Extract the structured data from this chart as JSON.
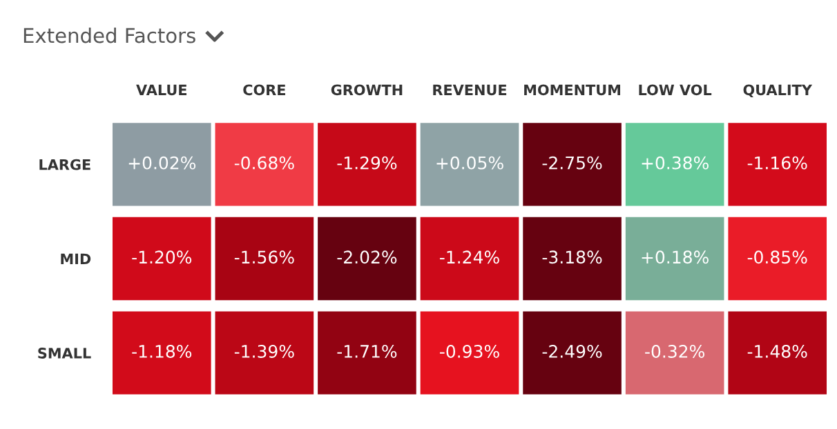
{
  "chart_data": {
    "type": "heatmap",
    "title": "Extended Factors",
    "categories": [
      "VALUE",
      "CORE",
      "GROWTH",
      "REVENUE",
      "MOMENTUM",
      "LOW VOL",
      "QUALITY"
    ],
    "y_categories": [
      "LARGE",
      "MID",
      "SMALL"
    ],
    "cells": [
      [
        0.02,
        -0.68,
        -1.29,
        0.05,
        -2.75,
        0.38,
        -1.16
      ],
      [
        -1.2,
        -1.56,
        -2.02,
        -1.24,
        -3.18,
        0.18,
        -0.85
      ],
      [
        -1.18,
        -1.39,
        -1.71,
        -0.93,
        -2.49,
        -0.32,
        -1.48
      ]
    ],
    "cell_labels": [
      [
        "+0.02%",
        "-0.68%",
        "-1.29%",
        "+0.05%",
        "-2.75%",
        "+0.38%",
        "-1.16%"
      ],
      [
        "-1.20%",
        "-1.56%",
        "-2.02%",
        "-1.24%",
        "-3.18%",
        "+0.18%",
        "-0.85%"
      ],
      [
        "-1.18%",
        "-1.39%",
        "-1.71%",
        "-0.93%",
        "-2.49%",
        "-0.32%",
        "-1.48%"
      ]
    ]
  }
}
